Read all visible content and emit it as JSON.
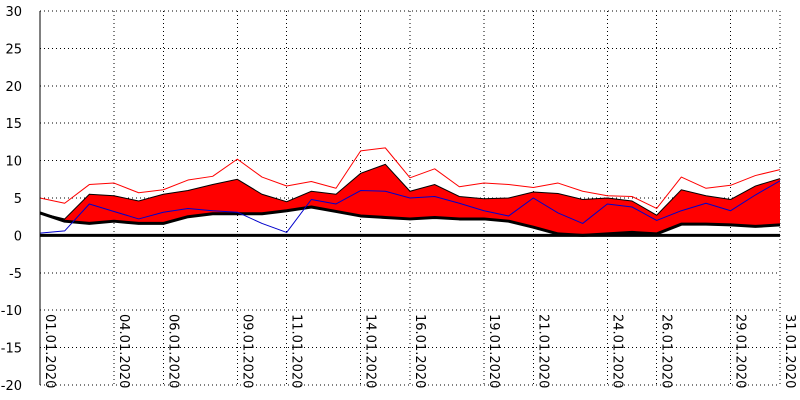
{
  "chart_data": {
    "type": "area",
    "title": "",
    "xlabel": "",
    "ylabel": "",
    "ylim": [
      -20,
      30
    ],
    "y_ticks": [
      -20,
      -15,
      -10,
      -5,
      0,
      5,
      10,
      15,
      20,
      25,
      30
    ],
    "x_range": [
      "2020-01-01",
      "2020-01-31"
    ],
    "x_tick_labels": [
      "01.01.2020",
      "04.01.2020",
      "06.01.2020",
      "09.01.2020",
      "11.01.2020",
      "14.01.2020",
      "16.01.2020",
      "19.01.2020",
      "21.01.2020",
      "24.01.2020",
      "26.01.2020",
      "29.01.2020",
      "31.01.2020"
    ],
    "grid": true,
    "x": [
      "2020-01-01",
      "2020-01-02",
      "2020-01-03",
      "2020-01-04",
      "2020-01-05",
      "2020-01-06",
      "2020-01-07",
      "2020-01-08",
      "2020-01-09",
      "2020-01-10",
      "2020-01-11",
      "2020-01-12",
      "2020-01-13",
      "2020-01-14",
      "2020-01-15",
      "2020-01-16",
      "2020-01-17",
      "2020-01-18",
      "2020-01-19",
      "2020-01-20",
      "2020-01-21",
      "2020-01-22",
      "2020-01-23",
      "2020-01-24",
      "2020-01-25",
      "2020-01-26",
      "2020-01-27",
      "2020-01-28",
      "2020-01-29",
      "2020-01-30",
      "2020-01-31"
    ],
    "series": [
      {
        "role": "range-upper",
        "color": "#ff0000",
        "values": [
          3.0,
          2.2,
          5.5,
          5.3,
          4.6,
          5.5,
          6.0,
          6.8,
          7.5,
          5.5,
          4.5,
          5.9,
          5.5,
          8.3,
          9.5,
          5.9,
          6.8,
          5.2,
          4.9,
          5.0,
          5.8,
          5.6,
          4.8,
          5.0,
          4.6,
          2.7,
          6.1,
          5.3,
          4.8,
          6.6,
          7.6
        ]
      },
      {
        "role": "range-lower",
        "color": "#000000",
        "values": [
          3.0,
          1.9,
          1.6,
          1.9,
          1.6,
          1.6,
          2.5,
          2.9,
          2.9,
          2.9,
          3.3,
          3.8,
          3.2,
          2.6,
          2.4,
          2.2,
          2.4,
          2.2,
          2.2,
          1.9,
          1.1,
          0.2,
          0.0,
          0.2,
          0.4,
          0.2,
          1.5,
          1.5,
          1.4,
          1.2,
          1.4
        ]
      },
      {
        "role": "upper-thin",
        "color": "#ff0000",
        "values": [
          5.0,
          4.3,
          6.8,
          7.0,
          5.7,
          6.1,
          7.4,
          7.9,
          10.2,
          7.8,
          6.6,
          7.2,
          6.3,
          11.3,
          11.7,
          7.7,
          8.9,
          6.5,
          7.0,
          6.8,
          6.4,
          7.0,
          5.9,
          5.3,
          5.2,
          3.6,
          7.8,
          6.3,
          6.7,
          8.0,
          8.8
        ]
      },
      {
        "role": "blue",
        "color": "#0000cc",
        "values": [
          0.3,
          0.6,
          4.2,
          3.2,
          2.2,
          3.1,
          3.6,
          3.3,
          3.1,
          1.6,
          0.4,
          4.8,
          4.2,
          6.0,
          5.9,
          5.0,
          5.2,
          4.3,
          3.3,
          2.6,
          5.0,
          3.0,
          1.6,
          4.2,
          3.8,
          2.0,
          3.3,
          4.3,
          3.3,
          5.4,
          7.3
        ]
      },
      {
        "role": "black-thick",
        "color": "#000000",
        "values": [
          3.0,
          1.9,
          1.6,
          1.9,
          1.6,
          1.6,
          2.5,
          2.9,
          2.9,
          2.9,
          3.3,
          3.8,
          3.2,
          2.6,
          2.4,
          2.2,
          2.4,
          2.2,
          2.2,
          1.9,
          1.1,
          0.2,
          0.0,
          0.2,
          0.4,
          0.2,
          1.5,
          1.5,
          1.4,
          1.2,
          1.4
        ]
      },
      {
        "role": "zero-baseline",
        "color": "#000000",
        "values": [
          0,
          0,
          0,
          0,
          0,
          0,
          0,
          0,
          0,
          0,
          0,
          0,
          0,
          0,
          0,
          0,
          0,
          0,
          0,
          0,
          0,
          0,
          0,
          0,
          0,
          0,
          0,
          0,
          0,
          0,
          0
        ]
      }
    ]
  }
}
